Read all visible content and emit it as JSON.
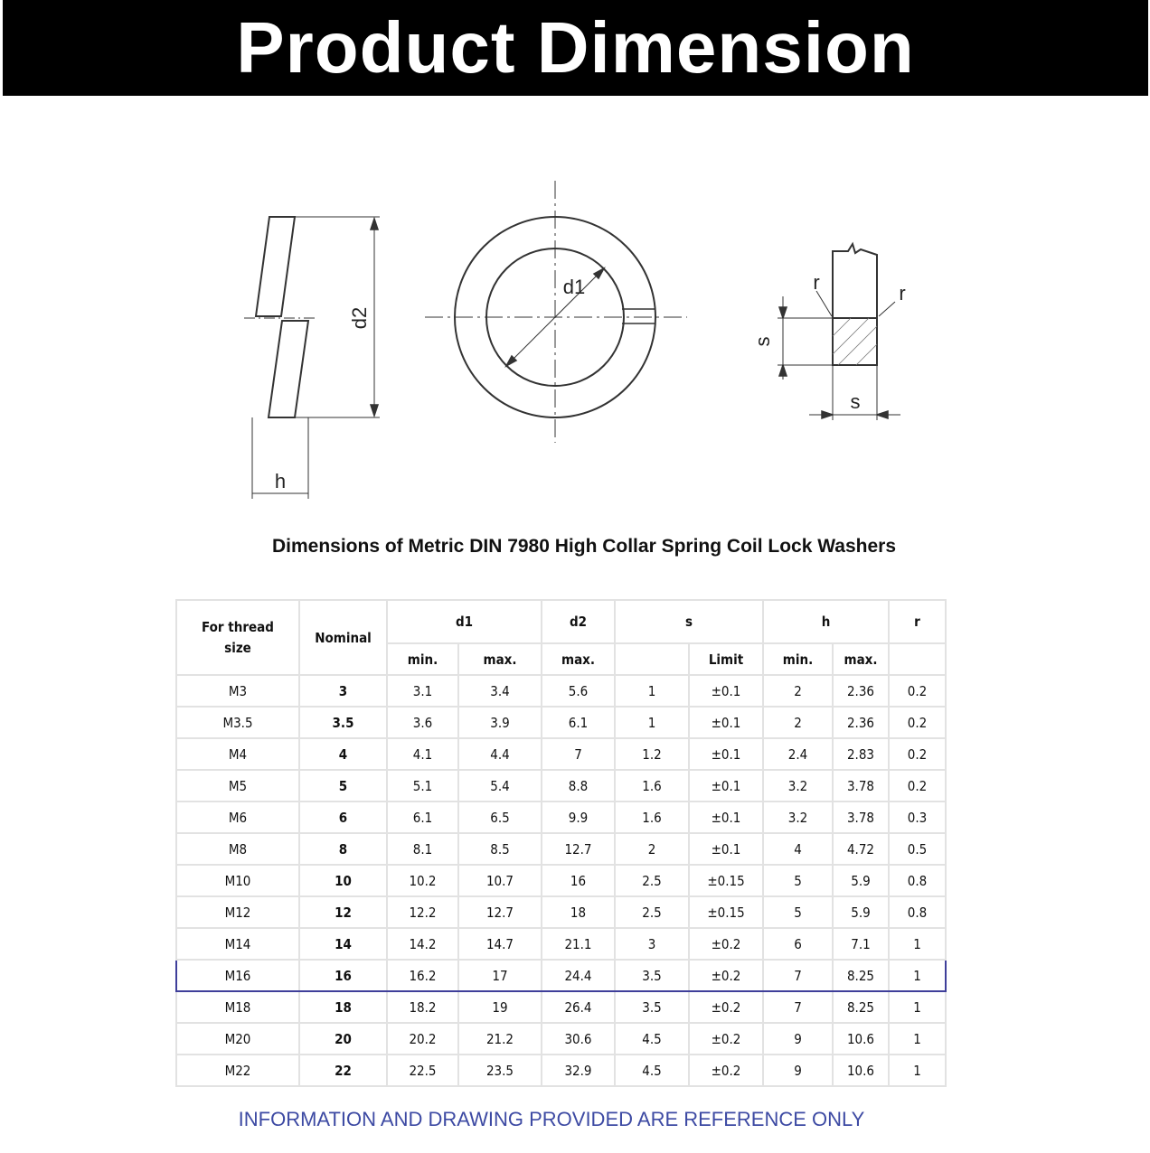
{
  "banner": {
    "title": "Product Dimension"
  },
  "drawing": {
    "label_d2": "d2",
    "label_d1": "d1",
    "label_h": "h",
    "label_r_left": "r",
    "label_r_right": "r",
    "label_s_vertical": "s",
    "label_s_horizontal": "s"
  },
  "caption": "Dimensions of Metric DIN 7980 High Collar Spring Coil Lock Washers",
  "table": {
    "headers": {
      "thread": "For thread size",
      "nominal": "Nominal",
      "d1": "d1",
      "d2": "d2",
      "s": "s",
      "h": "h",
      "r": "r"
    },
    "subheaders": {
      "d1_min": "min.",
      "d1_max": "max.",
      "d2_max": "max.",
      "s_val": "",
      "s_limit": "Limit",
      "h_min": "min.",
      "h_max": "max.",
      "r": ""
    },
    "highlighted_row": "M16",
    "highlight_color": "#3f3f9a",
    "rows": [
      [
        "M3",
        "3",
        "3.1",
        "3.4",
        "5.6",
        "1",
        "±0.1",
        "2",
        "2.36",
        "0.2"
      ],
      [
        "M3.5",
        "3.5",
        "3.6",
        "3.9",
        "6.1",
        "1",
        "±0.1",
        "2",
        "2.36",
        "0.2"
      ],
      [
        "M4",
        "4",
        "4.1",
        "4.4",
        "7",
        "1.2",
        "±0.1",
        "2.4",
        "2.83",
        "0.2"
      ],
      [
        "M5",
        "5",
        "5.1",
        "5.4",
        "8.8",
        "1.6",
        "±0.1",
        "3.2",
        "3.78",
        "0.2"
      ],
      [
        "M6",
        "6",
        "6.1",
        "6.5",
        "9.9",
        "1.6",
        "±0.1",
        "3.2",
        "3.78",
        "0.3"
      ],
      [
        "M8",
        "8",
        "8.1",
        "8.5",
        "12.7",
        "2",
        "±0.1",
        "4",
        "4.72",
        "0.5"
      ],
      [
        "M10",
        "10",
        "10.2",
        "10.7",
        "16",
        "2.5",
        "±0.15",
        "5",
        "5.9",
        "0.8"
      ],
      [
        "M12",
        "12",
        "12.2",
        "12.7",
        "18",
        "2.5",
        "±0.15",
        "5",
        "5.9",
        "0.8"
      ],
      [
        "M14",
        "14",
        "14.2",
        "14.7",
        "21.1",
        "3",
        "±0.2",
        "6",
        "7.1",
        "1"
      ],
      [
        "M16",
        "16",
        "16.2",
        "17",
        "24.4",
        "3.5",
        "±0.2",
        "7",
        "8.25",
        "1"
      ],
      [
        "M18",
        "18",
        "18.2",
        "19",
        "26.4",
        "3.5",
        "±0.2",
        "7",
        "8.25",
        "1"
      ],
      [
        "M20",
        "20",
        "20.2",
        "21.2",
        "30.6",
        "4.5",
        "±0.2",
        "9",
        "10.6",
        "1"
      ],
      [
        "M22",
        "22",
        "22.5",
        "23.5",
        "32.9",
        "4.5",
        "±0.2",
        "9",
        "10.6",
        "1"
      ]
    ]
  },
  "footer": "INFORMATION AND DRAWING PROVIDED ARE REFERENCE ONLY",
  "colors": {
    "banner_bg": "#000000",
    "footer_text": "#3d4aa3"
  }
}
